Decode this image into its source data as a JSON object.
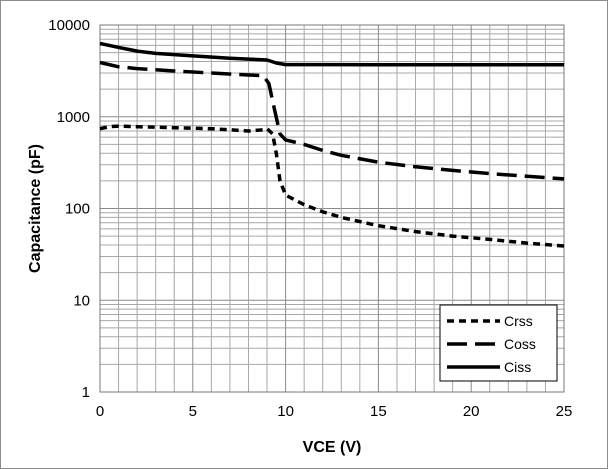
{
  "chart_data": {
    "type": "line",
    "xlabel": "VCE  (V)",
    "ylabel": "Capacitance  (pF)",
    "xlim": [
      0,
      25
    ],
    "ylim": [
      1,
      10000
    ],
    "yscale": "log",
    "grid": true,
    "legend_position": "bottom-right",
    "x_ticks": [
      "0",
      "5",
      "10",
      "15",
      "20",
      "25"
    ],
    "y_ticks": [
      "1",
      "10",
      "100",
      "1000",
      "10000"
    ],
    "series": [
      {
        "name": "Crss",
        "style": "short-dash",
        "color": "#000000",
        "points": [
          [
            0,
            740
          ],
          [
            0.5,
            780
          ],
          [
            1,
            790
          ],
          [
            2,
            780
          ],
          [
            4,
            760
          ],
          [
            6,
            740
          ],
          [
            7,
            720
          ],
          [
            8,
            700
          ],
          [
            8.8,
            720
          ],
          [
            9,
            740
          ],
          [
            9.3,
            650
          ],
          [
            9.5,
            400
          ],
          [
            9.7,
            200
          ],
          [
            10,
            140
          ],
          [
            11,
            110
          ],
          [
            12,
            92
          ],
          [
            13,
            80
          ],
          [
            15,
            65
          ],
          [
            17,
            56
          ],
          [
            19,
            50
          ],
          [
            21,
            46
          ],
          [
            23,
            42
          ],
          [
            25,
            39
          ]
        ]
      },
      {
        "name": "Coss",
        "style": "long-dash",
        "color": "#000000",
        "points": [
          [
            0,
            3900
          ],
          [
            1,
            3500
          ],
          [
            2,
            3350
          ],
          [
            4,
            3150
          ],
          [
            6,
            3000
          ],
          [
            8,
            2850
          ],
          [
            8.8,
            2800
          ],
          [
            9.1,
            2300
          ],
          [
            9.4,
            1200
          ],
          [
            9.7,
            650
          ],
          [
            10,
            560
          ],
          [
            11,
            500
          ],
          [
            12,
            430
          ],
          [
            13,
            380
          ],
          [
            15,
            320
          ],
          [
            17,
            285
          ],
          [
            19,
            260
          ],
          [
            21,
            240
          ],
          [
            23,
            225
          ],
          [
            25,
            210
          ]
        ]
      },
      {
        "name": "Ciss",
        "style": "solid",
        "color": "#000000",
        "points": [
          [
            0,
            6300
          ],
          [
            1,
            5700
          ],
          [
            2,
            5200
          ],
          [
            3,
            4900
          ],
          [
            5,
            4600
          ],
          [
            7,
            4350
          ],
          [
            8,
            4250
          ],
          [
            9,
            4150
          ],
          [
            9.5,
            3850
          ],
          [
            10,
            3700
          ],
          [
            12,
            3700
          ],
          [
            15,
            3680
          ],
          [
            20,
            3680
          ],
          [
            25,
            3680
          ]
        ]
      }
    ]
  }
}
